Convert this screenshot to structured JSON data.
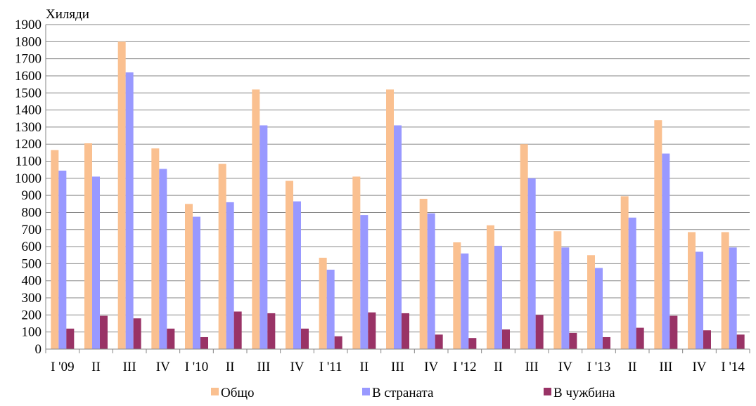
{
  "chart_data": {
    "type": "bar",
    "ylabel": "Хиляди",
    "ylim": [
      0,
      1900
    ],
    "ytick_step": 100,
    "grid": true,
    "legend_position": "bottom",
    "categories": [
      "I '09",
      "II",
      "III",
      "IV",
      "I '10",
      "II",
      "III",
      "IV",
      "I '11",
      "II",
      "III",
      "IV",
      "I '12",
      "II",
      "III",
      "IV",
      "I '13",
      "II",
      "III",
      "IV",
      "I '14"
    ],
    "series": [
      {
        "name": "Общо",
        "color": "#FAC090",
        "values": [
          1165,
          1205,
          1800,
          1175,
          850,
          1085,
          1520,
          985,
          535,
          1010,
          1520,
          880,
          625,
          725,
          1200,
          690,
          550,
          895,
          1340,
          685,
          685
        ]
      },
      {
        "name": "В страната",
        "color": "#9999FF",
        "values": [
          1045,
          1010,
          1620,
          1055,
          775,
          860,
          1310,
          865,
          465,
          785,
          1310,
          795,
          560,
          605,
          1000,
          595,
          475,
          770,
          1145,
          570,
          595
        ]
      },
      {
        "name": "В чужбина",
        "color": "#993366",
        "values": [
          120,
          195,
          180,
          120,
          70,
          220,
          210,
          120,
          75,
          215,
          210,
          85,
          65,
          115,
          200,
          95,
          70,
          125,
          195,
          110,
          85
        ]
      }
    ]
  }
}
